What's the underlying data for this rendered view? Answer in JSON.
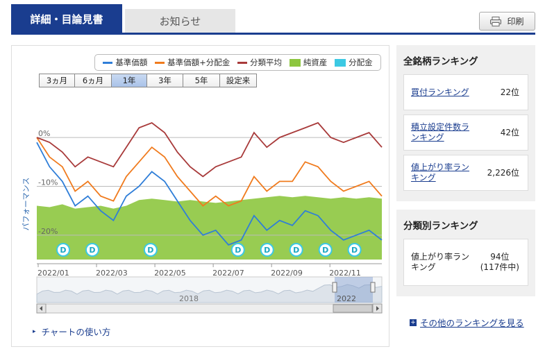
{
  "tabs": {
    "active": "詳細・目論見書",
    "inactive": "お知らせ"
  },
  "print_label": "印刷",
  "legend": [
    {
      "label": "基準価額",
      "color": "#2f7ed8",
      "kind": "line"
    },
    {
      "label": "基準価額+分配金",
      "color": "#f07b1e",
      "kind": "line"
    },
    {
      "label": "分類平均",
      "color": "#a83a3a",
      "kind": "line"
    },
    {
      "label": "純資産",
      "color": "#8dc63f",
      "kind": "box"
    },
    {
      "label": "分配金",
      "color": "#3cc9e3",
      "kind": "box"
    }
  ],
  "range_buttons": [
    "3ヵ月",
    "6ヵ月",
    "1年",
    "3年",
    "5年",
    "設定来"
  ],
  "range_selected": "1年",
  "ylabel": "パフォーマンス",
  "chart_data": {
    "type": "line",
    "ylim": [
      -25,
      4
    ],
    "yticks": [
      "0%",
      "-10%",
      "-20%"
    ],
    "x_tick_labels": [
      "2022/01",
      "2022/03",
      "2022/05",
      "2022/07",
      "2022/09",
      "2022/11"
    ],
    "series": [
      {
        "name": "基準価額",
        "values": [
          -1,
          -6,
          -9,
          -14,
          -12,
          -15,
          -17,
          -12,
          -10,
          -7,
          -9,
          -13,
          -17,
          -20,
          -19,
          -22,
          -21,
          -16,
          -19,
          -17,
          -18,
          -15,
          -16,
          -19,
          -21,
          -20,
          -19,
          -21
        ]
      },
      {
        "name": "基準価額+分配金",
        "values": [
          0,
          -4,
          -6,
          -11,
          -9,
          -12,
          -13,
          -8,
          -5,
          -2,
          -4,
          -8,
          -11,
          -14,
          -12,
          -14,
          -13,
          -8,
          -11,
          -9,
          -9,
          -5,
          -6,
          -9,
          -11,
          -10,
          -9,
          -12
        ]
      },
      {
        "name": "分類平均",
        "values": [
          0,
          -1,
          -3,
          -6,
          -4,
          -5,
          -6,
          -2,
          2,
          3,
          1,
          -3,
          -6,
          -8,
          -6,
          -5,
          -4,
          1,
          -2,
          0,
          1,
          2,
          3,
          0,
          -1,
          0,
          1,
          -2
        ]
      }
    ],
    "net_assets_relative": [
      0.38,
      0.37,
      0.39,
      0.36,
      0.37,
      0.38,
      0.36,
      0.38,
      0.42,
      0.43,
      0.42,
      0.41,
      0.42,
      0.41,
      0.4,
      0.41,
      0.42,
      0.43,
      0.44,
      0.45,
      0.44,
      0.45,
      0.44,
      0.43,
      0.44,
      0.43,
      0.44,
      0.43
    ],
    "dividend_marker_label": "D",
    "dividend_months": [
      "2022/01",
      "2022/02",
      "2022/04",
      "2022/07",
      "2022/08",
      "2022/09",
      "2022/10",
      "2022/11"
    ],
    "navigator_labels": [
      "2018",
      "2022"
    ]
  },
  "rank_all": {
    "title": "全銘柄ランキング",
    "items": [
      {
        "label": "買付ランキング",
        "value": "22位"
      },
      {
        "label": "積立設定件数ランキング",
        "value": "42位"
      },
      {
        "label": "値上がり率ランキング",
        "value": "2,226位"
      }
    ]
  },
  "rank_category": {
    "title": "分類別ランキング",
    "item_label": "値上がり率ランキング",
    "item_value": "94位",
    "item_sub": "(117件中)"
  },
  "how_to_link": "チャートの使い方",
  "other_rank_link": "その他のランキングを見る"
}
